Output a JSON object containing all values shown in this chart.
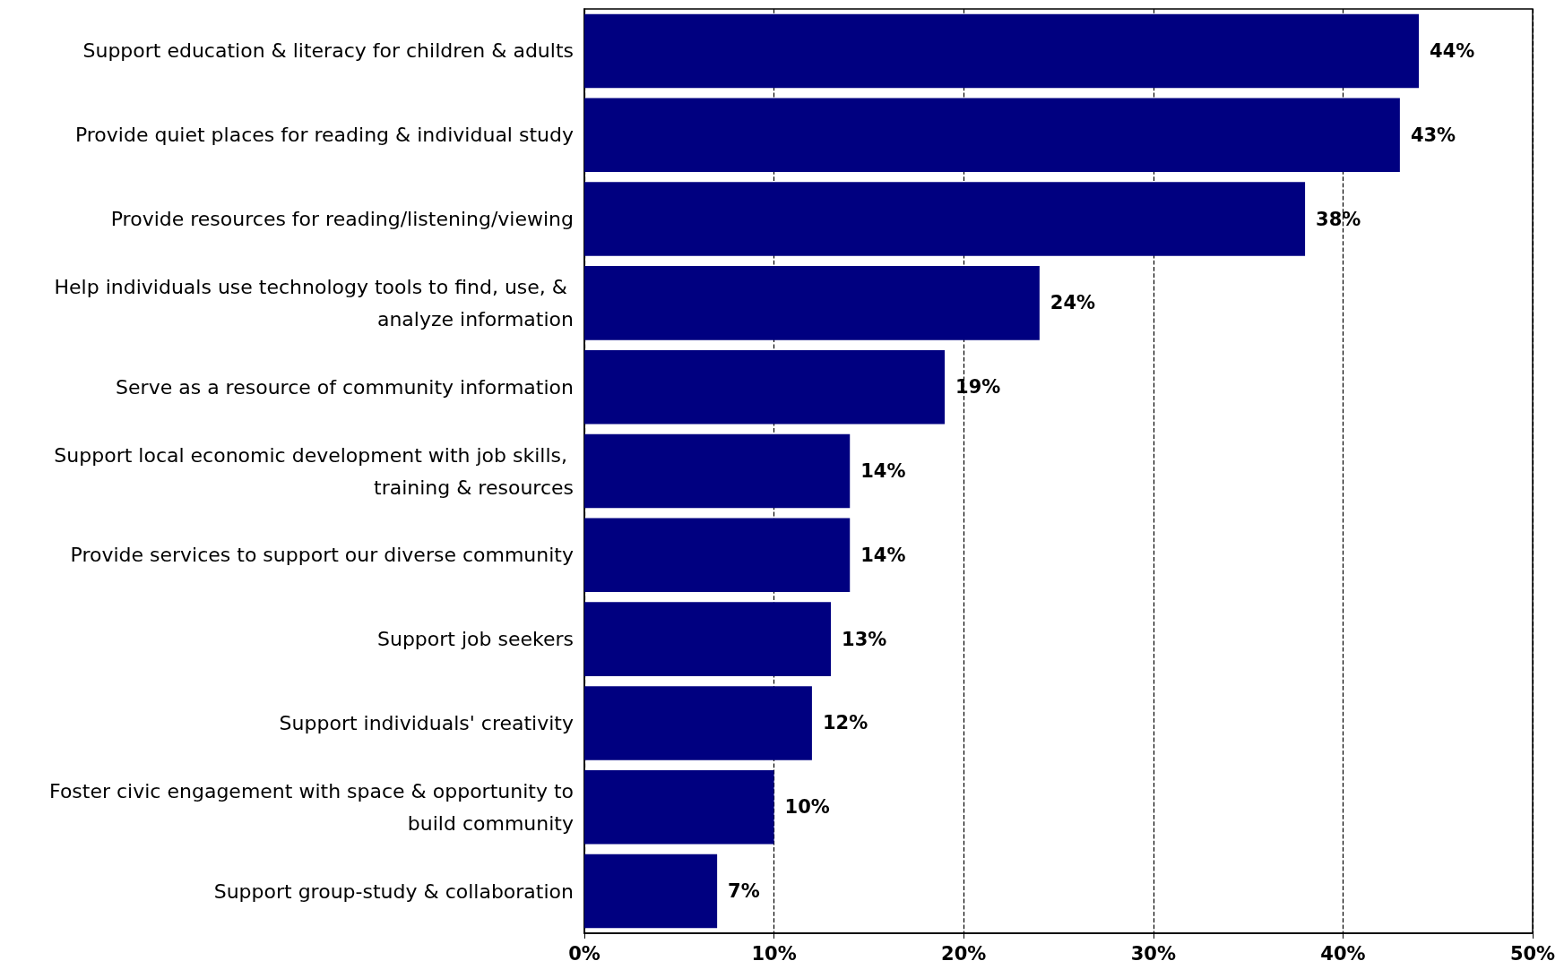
{
  "chart_data": {
    "type": "bar",
    "orientation": "horizontal",
    "categories": [
      "Support education & literacy for children & adults",
      "Provide quiet places for reading & individual study",
      "Provide resources for reading/listening/viewing",
      "Help individuals use technology tools to find, use, & analyze information",
      "Serve as a resource of community information",
      "Support local economic development with job skills, training & resources",
      "Provide services to support our diverse community",
      "Support job seekers",
      "Support individuals' creativity",
      "Foster civic engagement with space & opportunity to build community",
      "Support group-study & collaboration"
    ],
    "values": [
      44,
      43,
      38,
      24,
      19,
      14,
      14,
      13,
      12,
      10,
      7
    ],
    "value_labels": [
      "44%",
      "43%",
      "38%",
      "24%",
      "19%",
      "14%",
      "14%",
      "13%",
      "12%",
      "10%",
      "7%"
    ],
    "color": "#000080",
    "xlim": [
      0,
      50
    ],
    "xticks": [
      {
        "value": 0,
        "label": "0%"
      },
      {
        "value": 10,
        "label": "10%"
      },
      {
        "value": 20,
        "label": "20%"
      },
      {
        "value": 30,
        "label": "30%"
      },
      {
        "value": 40,
        "label": "40%"
      },
      {
        "value": 50,
        "label": "50%"
      }
    ],
    "grid": "x"
  }
}
